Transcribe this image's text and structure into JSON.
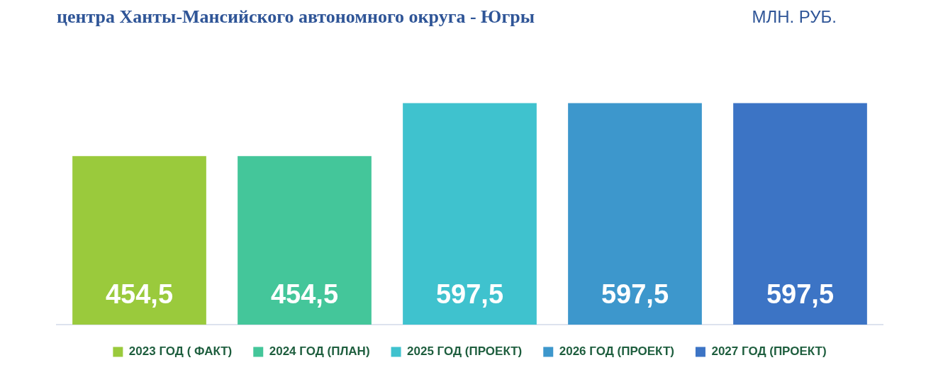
{
  "chart_data": {
    "type": "bar",
    "title": "центра Ханты-Мансийского автономного округа - Югры",
    "annotations": [
      "МЛН. РУБ."
    ],
    "categories": [
      null,
      null,
      null,
      null,
      null
    ],
    "stacked": true,
    "series": [
      {
        "name": "2023 ГОД ( ФАКТ)",
        "color": "#9aca3c",
        "values": [
          454.5,
          null,
          null,
          null,
          null
        ],
        "value_labels": [
          "454,5",
          null,
          null,
          null,
          null
        ]
      },
      {
        "name": "2024 ГОД (ПЛАН)",
        "color": "#44c69a",
        "values": [
          null,
          454.5,
          null,
          null,
          null
        ],
        "value_labels": [
          null,
          "454,5",
          null,
          null,
          null
        ]
      },
      {
        "name": "2025 ГОД (ПРОЕКТ)",
        "color": "#3fc2ce",
        "values": [
          null,
          null,
          597.5,
          null,
          null
        ],
        "value_labels": [
          null,
          null,
          "597,5",
          null,
          null
        ]
      },
      {
        "name": "2026 ГОД (ПРОЕКТ)",
        "color": "#3d97cc",
        "values": [
          null,
          null,
          null,
          597.5,
          null
        ],
        "value_labels": [
          null,
          null,
          null,
          "597,5",
          null
        ]
      },
      {
        "name": "2027 ГОД (ПРОЕКТ)",
        "color": "#3c74c5",
        "values": [
          null,
          null,
          null,
          null,
          597.5
        ],
        "value_labels": [
          null,
          null,
          null,
          null,
          "597,5"
        ]
      }
    ],
    "legend": "bottom"
  }
}
